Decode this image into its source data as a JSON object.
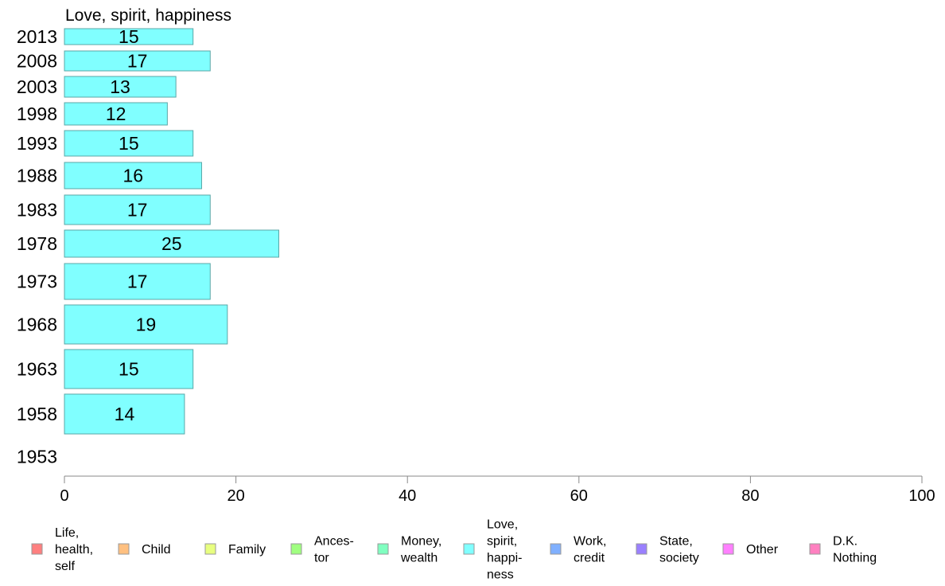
{
  "chart_data": {
    "type": "bar",
    "orientation": "horizontal",
    "title": "Love, spirit, happiness",
    "categories": [
      "2013",
      "2008",
      "2003",
      "1998",
      "1993",
      "1988",
      "1983",
      "1978",
      "1973",
      "1968",
      "1963",
      "1958",
      "1953"
    ],
    "values": [
      15,
      17,
      13,
      12,
      15,
      16,
      17,
      25,
      17,
      19,
      15,
      14,
      null
    ],
    "value_labels": [
      "15",
      "17",
      "13",
      "12",
      "15",
      "16",
      "17",
      "25",
      "17",
      "19",
      "15",
      "14",
      ""
    ],
    "xlim": [
      0,
      100
    ],
    "xticks": [
      0,
      20,
      40,
      60,
      80,
      100
    ],
    "xtick_labels": [
      "0",
      "20",
      "40",
      "60",
      "80",
      "100"
    ],
    "bar_color": "#80ffff",
    "legend_position": "bottom",
    "legend": [
      {
        "lines": [
          "Life,",
          "health,",
          "self"
        ],
        "color": "#ff8080"
      },
      {
        "lines": [
          "Child"
        ],
        "color": "#ffc080"
      },
      {
        "lines": [
          "Family"
        ],
        "color": "#e8ff80"
      },
      {
        "lines": [
          "Ances-",
          "tor"
        ],
        "color": "#a0ff80"
      },
      {
        "lines": [
          "Money,",
          "wealth"
        ],
        "color": "#80ffc0"
      },
      {
        "lines": [
          "Love,",
          "spirit,",
          "happi-",
          "ness"
        ],
        "color": "#80ffff"
      },
      {
        "lines": [
          "Work,",
          "credit"
        ],
        "color": "#80b0ff"
      },
      {
        "lines": [
          "State,",
          "society"
        ],
        "color": "#9a80ff"
      },
      {
        "lines": [
          "Other"
        ],
        "color": "#ff80ff"
      },
      {
        "lines": [
          "D.K.",
          "Nothing"
        ],
        "color": "#ff80c0"
      }
    ]
  }
}
